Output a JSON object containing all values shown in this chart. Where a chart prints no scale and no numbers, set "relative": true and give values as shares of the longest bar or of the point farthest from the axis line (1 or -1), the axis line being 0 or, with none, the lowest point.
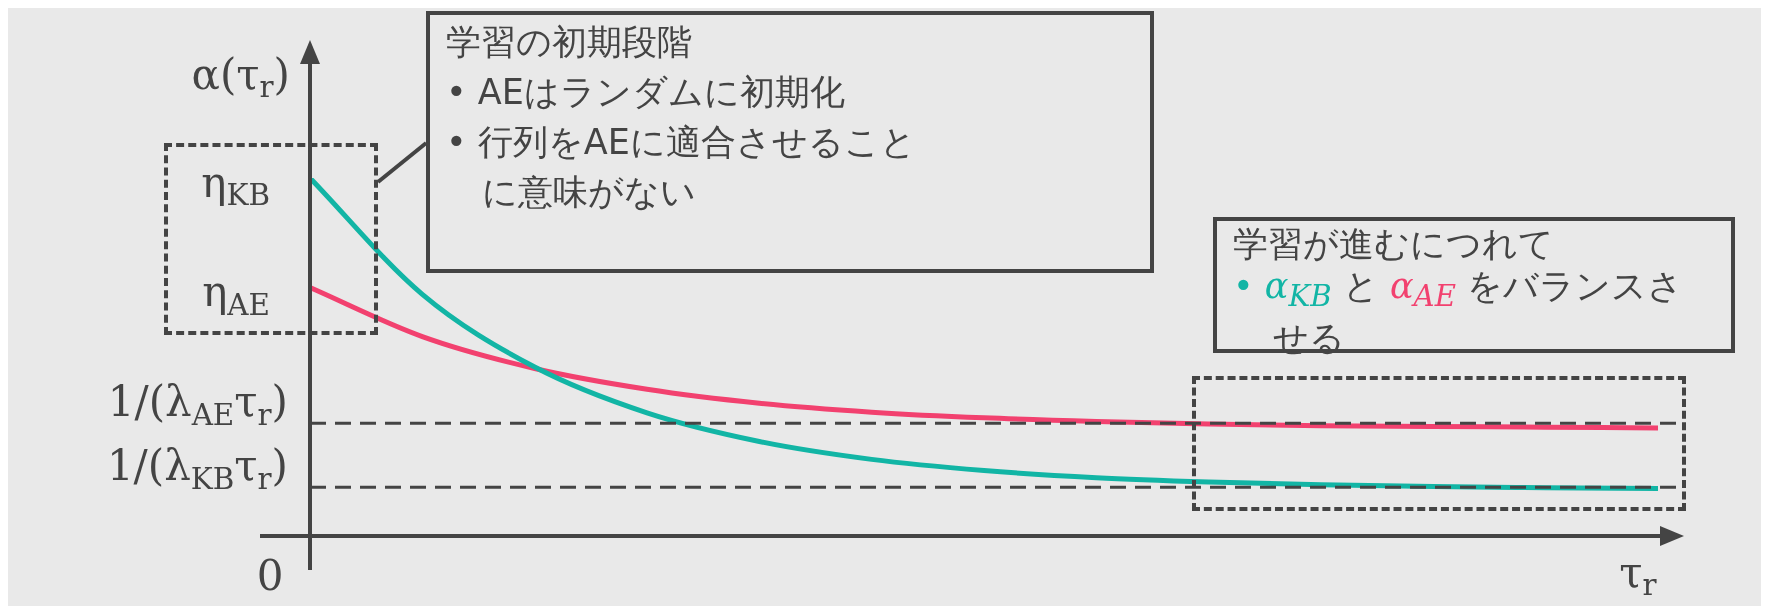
{
  "chart_data": {
    "type": "line",
    "relative": true,
    "xlabel": "τ$_{r}$",
    "ylabel": "α(τ$_{r}$)",
    "categories": [
      null,
      null,
      null,
      null,
      null,
      null,
      null,
      null,
      null,
      null,
      null,
      null,
      null
    ],
    "series": [
      {
        "name": "α$_{KB}$",
        "color": "#12b5a5",
        "values": [
          1.0,
          0.675,
          0.472,
          0.344,
          0.264,
          0.214,
          0.183,
          0.163,
          0.151,
          0.143,
          0.138,
          0.135,
          0.133
        ]
      },
      {
        "name": "α$_{AE}$",
        "color": "#f2416f",
        "values": [
          0.694,
          0.557,
          0.468,
          0.41,
          0.371,
          0.346,
          0.33,
          0.32,
          0.313,
          0.308,
          0.306,
          0.304,
          0.302
        ]
      }
    ],
    "ref_lines": [
      {
        "axis": "y",
        "value": 0.315,
        "label": "1/(λ$_{AE}$τ$_{r}$)",
        "line_style": "dashed"
      },
      {
        "axis": "y",
        "value": 0.136,
        "label": "1/(λ$_{KB}$τ$_{r}$)",
        "line_style": "dashed"
      }
    ],
    "annotations": [
      "0",
      "η$_{KB}$",
      "η$_{AE}$",
      "学習の初期段階",
      "• AEはランダムに初期化",
      "• 行列をAEに適合させること",
      "に意味がない",
      "学習が進むにつれて",
      "•",
      "と",
      "をバランスさせる"
    ]
  }
}
